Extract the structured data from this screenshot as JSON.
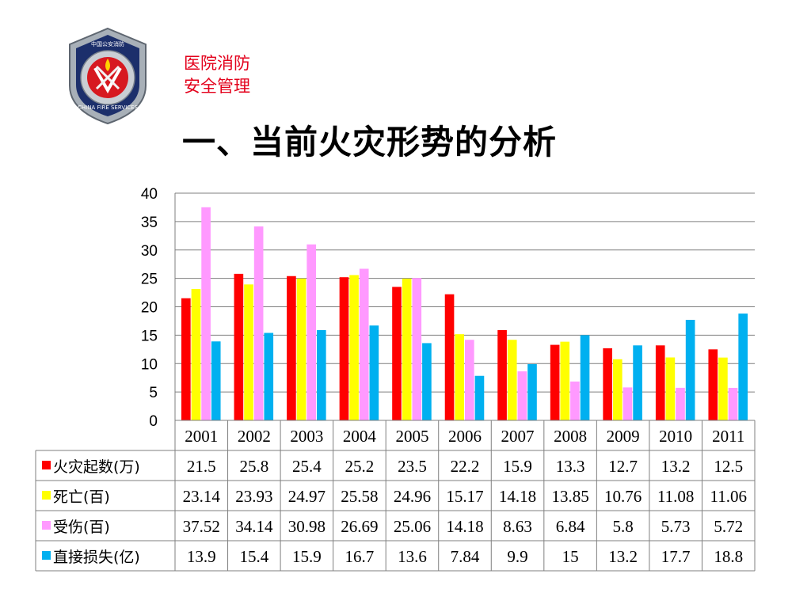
{
  "header": {
    "subtitle_line1": "医院消防",
    "subtitle_line2": "安全管理",
    "title": "一、当前火灾形势的分析"
  },
  "logo": {
    "icon": "china-fire-services-badge-icon",
    "ring_text": "CHINA FIRE SERVICES",
    "top_text": "中国公安消防"
  },
  "chart_data": {
    "type": "bar",
    "categories": [
      "2001",
      "2002",
      "2003",
      "2004",
      "2005",
      "2006",
      "2007",
      "2008",
      "2009",
      "2010",
      "2011"
    ],
    "series": [
      {
        "name": "火灾起数(万)",
        "color": "#ff0000",
        "values": [
          21.5,
          25.8,
          25.4,
          25.2,
          23.5,
          22.2,
          15.9,
          13.3,
          12.7,
          13.2,
          12.5
        ],
        "labels": [
          "21.5",
          "25.8",
          "25.4",
          "25.2",
          "23.5",
          "22.2",
          "15.9",
          "13.3",
          "12.7",
          "13.2",
          "12.5"
        ]
      },
      {
        "name": "死亡(百)",
        "color": "#ffff00",
        "values": [
          23.14,
          23.93,
          24.97,
          25.58,
          24.96,
          15.17,
          14.18,
          13.85,
          10.76,
          11.08,
          11.06
        ],
        "labels": [
          "23.14",
          "23.93",
          "24.97",
          "25.58",
          "24.96",
          "15.17",
          "14.18",
          "13.85",
          "10.76",
          "11.08",
          "11.06"
        ]
      },
      {
        "name": "受伤(百)",
        "color": "#ff99ff",
        "values": [
          37.52,
          34.14,
          30.98,
          26.69,
          25.06,
          14.18,
          8.63,
          6.84,
          5.8,
          5.73,
          5.72
        ],
        "labels": [
          "37.52",
          "34.14",
          "30.98",
          "26.69",
          "25.06",
          "14.18",
          "8.63",
          "6.84",
          "5.8",
          "5.73",
          "5.72"
        ]
      },
      {
        "name": "直接损失(亿)",
        "color": "#00b0f0",
        "values": [
          13.9,
          15.4,
          15.9,
          16.7,
          13.6,
          7.84,
          9.9,
          15,
          13.2,
          17.7,
          18.8
        ],
        "labels": [
          "13.9",
          "15.4",
          "15.9",
          "16.7",
          "13.6",
          "7.84",
          "9.9",
          "15",
          "13.2",
          "17.7",
          "18.8"
        ]
      }
    ],
    "ylim": [
      0,
      40
    ],
    "yticks": [
      "0",
      "5",
      "10",
      "15",
      "20",
      "25",
      "30",
      "35",
      "40"
    ],
    "grid": true,
    "legend": "data-table"
  }
}
